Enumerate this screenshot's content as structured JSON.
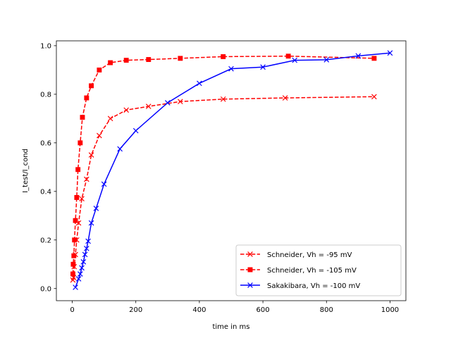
{
  "chart_data": {
    "type": "line",
    "title": "",
    "xlabel": "time in ms",
    "ylabel": "I_test/I_cond",
    "xlim": [
      -50,
      1050
    ],
    "ylim": [
      -0.05,
      1.02
    ],
    "xticks": [
      0,
      200,
      400,
      600,
      800,
      1000
    ],
    "yticks": [
      0.0,
      0.2,
      0.4,
      0.6,
      0.8,
      1.0
    ],
    "xtick_labels": [
      "0",
      "200",
      "400",
      "600",
      "800",
      "1000"
    ],
    "ytick_labels": [
      "0.0",
      "0.2",
      "0.4",
      "0.6",
      "0.8",
      "1.0"
    ],
    "grid": false,
    "legend_position": "lower-right",
    "series": [
      {
        "name": "Schneider, Vh = -95 mV",
        "color": "#ff0000",
        "linestyle": "dashed",
        "marker": "x",
        "x": [
          2,
          4,
          6,
          10,
          14,
          20,
          30,
          45,
          60,
          85,
          120,
          170,
          240,
          340,
          475,
          670,
          950
        ],
        "y": [
          0.035,
          0.045,
          0.09,
          0.14,
          0.2,
          0.27,
          0.37,
          0.45,
          0.55,
          0.63,
          0.7,
          0.735,
          0.75,
          0.77,
          0.78,
          0.785,
          0.79
        ]
      },
      {
        "name": "Schneider, Vh = -105 mV",
        "color": "#ff0000",
        "linestyle": "dashed",
        "marker": "s",
        "x": [
          2,
          3,
          5,
          7,
          10,
          14,
          18,
          25,
          32,
          45,
          60,
          85,
          120,
          170,
          240,
          340,
          475,
          680,
          950
        ],
        "y": [
          0.06,
          0.1,
          0.135,
          0.2,
          0.28,
          0.375,
          0.49,
          0.6,
          0.705,
          0.785,
          0.835,
          0.9,
          0.93,
          0.94,
          0.943,
          0.948,
          0.955,
          0.957,
          0.948
        ]
      },
      {
        "name": "Sakakibara, Vh = -100 mV",
        "color": "#0000ff",
        "linestyle": "solid",
        "marker": "x",
        "x": [
          10,
          20,
          25,
          30,
          35,
          40,
          45,
          50,
          60,
          75,
          100,
          150,
          200,
          300,
          400,
          500,
          600,
          700,
          800,
          900,
          1000
        ],
        "y": [
          0.005,
          0.04,
          0.06,
          0.085,
          0.11,
          0.14,
          0.165,
          0.195,
          0.27,
          0.33,
          0.43,
          0.575,
          0.65,
          0.765,
          0.845,
          0.905,
          0.912,
          0.94,
          0.942,
          0.958,
          0.97
        ]
      }
    ]
  }
}
